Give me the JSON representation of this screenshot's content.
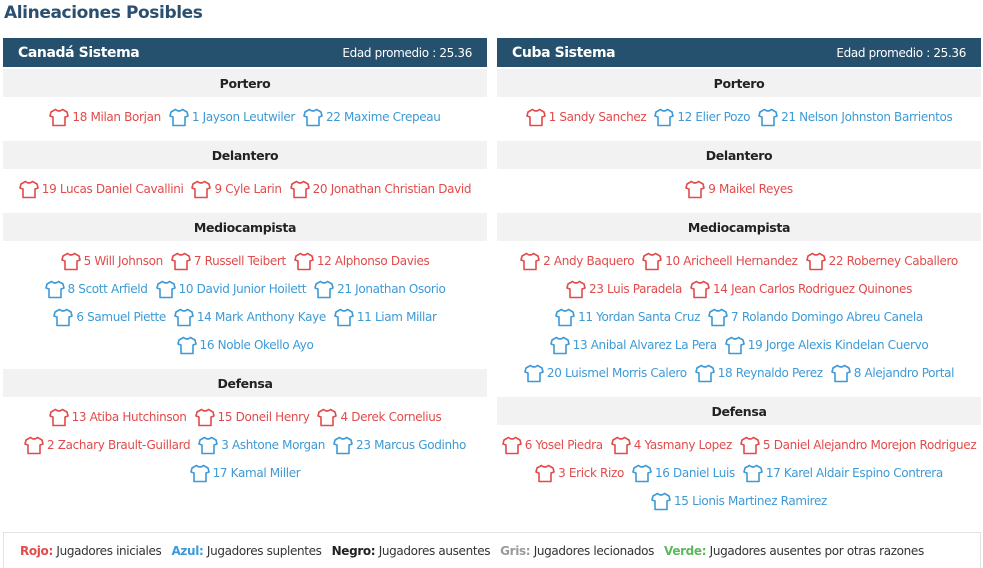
{
  "page": {
    "title": "Alineaciones Posibles"
  },
  "teams": [
    {
      "name": "Canadá Sistema",
      "age": "Edad promedio : 25.36",
      "sections": [
        {
          "label": "Portero",
          "rows": [
            [
              {
                "num": "18",
                "name": "Milan Borjan",
                "c": "red"
              },
              {
                "num": "1",
                "name": "Jayson Leutwiler",
                "c": "blue"
              },
              {
                "num": "22",
                "name": "Maxime Crepeau",
                "c": "blue"
              }
            ]
          ]
        },
        {
          "label": "Delantero",
          "rows": [
            [
              {
                "num": "19",
                "name": "Lucas Daniel Cavallini",
                "c": "red"
              },
              {
                "num": "9",
                "name": "Cyle Larin",
                "c": "red"
              },
              {
                "num": "20",
                "name": "Jonathan Christian David",
                "c": "red"
              }
            ]
          ]
        },
        {
          "label": "Mediocampista",
          "rows": [
            [
              {
                "num": "5",
                "name": "Will Johnson",
                "c": "red"
              },
              {
                "num": "7",
                "name": "Russell Teibert",
                "c": "red"
              },
              {
                "num": "12",
                "name": "Alphonso Davies",
                "c": "red"
              }
            ],
            [
              {
                "num": "8",
                "name": "Scott Arfield",
                "c": "blue"
              },
              {
                "num": "10",
                "name": "David Junior Hoilett",
                "c": "blue"
              },
              {
                "num": "21",
                "name": "Jonathan Osorio",
                "c": "blue"
              }
            ],
            [
              {
                "num": "6",
                "name": "Samuel Piette",
                "c": "blue"
              },
              {
                "num": "14",
                "name": "Mark Anthony Kaye",
                "c": "blue"
              },
              {
                "num": "11",
                "name": "Liam Millar",
                "c": "blue"
              }
            ],
            [
              {
                "num": "16",
                "name": "Noble Okello Ayo",
                "c": "blue"
              }
            ]
          ]
        },
        {
          "label": "Defensa",
          "rows": [
            [
              {
                "num": "13",
                "name": "Atiba Hutchinson",
                "c": "red"
              },
              {
                "num": "15",
                "name": "Doneil Henry",
                "c": "red"
              },
              {
                "num": "4",
                "name": "Derek Cornelius",
                "c": "red"
              }
            ],
            [
              {
                "num": "2",
                "name": "Zachary Brault-Guillard",
                "c": "red"
              },
              {
                "num": "3",
                "name": "Ashtone Morgan",
                "c": "blue"
              },
              {
                "num": "23",
                "name": "Marcus Godinho",
                "c": "blue"
              }
            ],
            [
              {
                "num": "17",
                "name": "Kamal Miller",
                "c": "blue"
              }
            ]
          ]
        }
      ]
    },
    {
      "name": "Cuba Sistema",
      "age": "Edad promedio : 25.36",
      "sections": [
        {
          "label": "Portero",
          "rows": [
            [
              {
                "num": "1",
                "name": "Sandy Sanchez",
                "c": "red"
              },
              {
                "num": "12",
                "name": "Elier Pozo",
                "c": "blue"
              },
              {
                "num": "21",
                "name": "Nelson Johnston Barrientos",
                "c": "blue"
              }
            ]
          ]
        },
        {
          "label": "Delantero",
          "rows": [
            [
              {
                "num": "9",
                "name": "Maikel Reyes",
                "c": "red"
              }
            ]
          ]
        },
        {
          "label": "Mediocampista",
          "rows": [
            [
              {
                "num": "2",
                "name": "Andy Baquero",
                "c": "red"
              },
              {
                "num": "10",
                "name": "Aricheell Hernandez",
                "c": "red"
              },
              {
                "num": "22",
                "name": "Roberney Caballero",
                "c": "red"
              }
            ],
            [
              {
                "num": "23",
                "name": "Luis Paradela",
                "c": "red"
              },
              {
                "num": "14",
                "name": "Jean Carlos Rodriguez Quinones",
                "c": "red"
              }
            ],
            [
              {
                "num": "11",
                "name": "Yordan Santa Cruz",
                "c": "blue"
              },
              {
                "num": "7",
                "name": "Rolando Domingo Abreu Canela",
                "c": "blue"
              }
            ],
            [
              {
                "num": "13",
                "name": "Anibal Alvarez La Pera",
                "c": "blue"
              },
              {
                "num": "19",
                "name": "Jorge Alexis Kindelan Cuervo",
                "c": "blue"
              }
            ],
            [
              {
                "num": "20",
                "name": "Luismel Morris Calero",
                "c": "blue"
              },
              {
                "num": "18",
                "name": "Reynaldo Perez",
                "c": "blue"
              },
              {
                "num": "8",
                "name": "Alejandro Portal",
                "c": "blue"
              }
            ]
          ]
        },
        {
          "label": "Defensa",
          "rows": [
            [
              {
                "num": "6",
                "name": "Yosel Piedra",
                "c": "red"
              },
              {
                "num": "4",
                "name": "Yasmany Lopez",
                "c": "red"
              },
              {
                "num": "5",
                "name": "Daniel Alejandro Morejon Rodriguez",
                "c": "red"
              }
            ],
            [
              {
                "num": "3",
                "name": "Erick Rizo",
                "c": "red"
              },
              {
                "num": "16",
                "name": "Daniel Luis",
                "c": "blue"
              },
              {
                "num": "17",
                "name": "Karel Aldair Espino Contrera",
                "c": "blue"
              }
            ],
            [
              {
                "num": "15",
                "name": "Lionis Martinez Ramirez",
                "c": "blue"
              }
            ]
          ]
        }
      ]
    }
  ],
  "legend": [
    {
      "key": "Rojo:",
      "text": "Jugadores iniciales",
      "color": "#e24b4b"
    },
    {
      "key": "Azul:",
      "text": "Jugadores suplentes",
      "color": "#3d9ad6"
    },
    {
      "key": "Negro:",
      "text": "Jugadores ausentes",
      "color": "#222222"
    },
    {
      "key": "Gris:",
      "text": "Jugadores lecionados",
      "color": "#9a9a9a"
    },
    {
      "key": "Verde:",
      "text": "Jugadores ausentes por otras razones",
      "color": "#5cb85c"
    }
  ],
  "colors": {
    "red": "#e24b4b",
    "blue": "#3d9ad6",
    "header": "#25506e",
    "title": "#2b4f6e"
  },
  "icons": {
    "player": "shirt-icon"
  }
}
